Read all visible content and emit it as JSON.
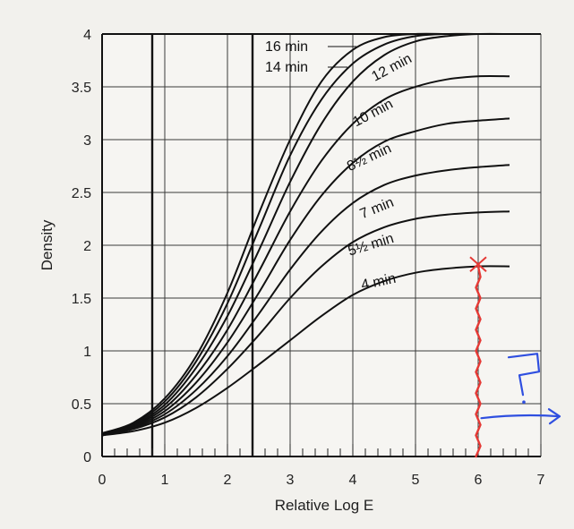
{
  "chart_data": {
    "type": "line",
    "title": "",
    "xlabel": "Relative Log E",
    "ylabel": "Density",
    "xlim": [
      0,
      7
    ],
    "ylim": [
      0,
      4
    ],
    "grid": true,
    "x_ticks": [
      "0",
      "1",
      "2",
      "3",
      "4",
      "5",
      "6",
      "7"
    ],
    "y_ticks": [
      "0",
      "0.5",
      "1",
      "1.5",
      "2",
      "2.5",
      "3",
      "3.5",
      "4"
    ],
    "emphasized_verticals": [
      0.8,
      2.4
    ],
    "series": [
      {
        "name": "16 min",
        "x": [
          0,
          0.5,
          1,
          1.5,
          2,
          2.5,
          3,
          3.5,
          4,
          4.5,
          5,
          5.5,
          6,
          6.5
        ],
        "y": [
          0.22,
          0.32,
          0.55,
          0.95,
          1.55,
          2.3,
          3.0,
          3.55,
          3.85,
          3.97,
          4.0,
          4.0,
          4.0,
          4.0
        ]
      },
      {
        "name": "14 min",
        "x": [
          0,
          0.5,
          1,
          1.5,
          2,
          2.5,
          3,
          3.5,
          4,
          4.5,
          5,
          5.5,
          6,
          6.5
        ],
        "y": [
          0.22,
          0.31,
          0.52,
          0.9,
          1.45,
          2.15,
          2.85,
          3.38,
          3.72,
          3.9,
          3.98,
          4.0,
          4.0,
          4.0
        ]
      },
      {
        "name": "12 min",
        "x": [
          0,
          0.5,
          1,
          1.5,
          2,
          2.5,
          3,
          3.5,
          4,
          4.5,
          5,
          5.5,
          6,
          6.5
        ],
        "y": [
          0.21,
          0.3,
          0.49,
          0.84,
          1.33,
          1.95,
          2.6,
          3.15,
          3.55,
          3.8,
          3.93,
          3.98,
          4.0,
          4.0
        ]
      },
      {
        "name": "10 min",
        "x": [
          0,
          0.5,
          1,
          1.5,
          2,
          2.5,
          3,
          3.5,
          4,
          4.5,
          5,
          5.5,
          6,
          6.5
        ],
        "y": [
          0.21,
          0.29,
          0.46,
          0.77,
          1.2,
          1.75,
          2.32,
          2.8,
          3.15,
          3.38,
          3.5,
          3.57,
          3.6,
          3.6
        ]
      },
      {
        "name": "8½ min",
        "x": [
          0,
          0.5,
          1,
          1.5,
          2,
          2.5,
          3,
          3.5,
          4,
          4.5,
          5,
          5.5,
          6,
          6.5
        ],
        "y": [
          0.2,
          0.28,
          0.43,
          0.7,
          1.08,
          1.55,
          2.05,
          2.47,
          2.78,
          2.98,
          3.08,
          3.15,
          3.18,
          3.2
        ]
      },
      {
        "name": "7 min",
        "x": [
          0,
          0.5,
          1,
          1.5,
          2,
          2.5,
          3,
          3.5,
          4,
          4.5,
          5,
          5.5,
          6,
          6.5
        ],
        "y": [
          0.2,
          0.27,
          0.4,
          0.63,
          0.95,
          1.35,
          1.77,
          2.13,
          2.4,
          2.57,
          2.66,
          2.71,
          2.74,
          2.76
        ]
      },
      {
        "name": "5½ min",
        "x": [
          0,
          0.5,
          1,
          1.5,
          2,
          2.5,
          3,
          3.5,
          4,
          4.5,
          5,
          5.5,
          6,
          6.5
        ],
        "y": [
          0.2,
          0.26,
          0.37,
          0.56,
          0.83,
          1.15,
          1.5,
          1.8,
          2.03,
          2.17,
          2.25,
          2.29,
          2.31,
          2.32
        ]
      },
      {
        "name": "4 min",
        "x": [
          0,
          0.5,
          1,
          1.5,
          2,
          2.5,
          3,
          3.5,
          4,
          4.5,
          5,
          5.5,
          6,
          6.5
        ],
        "y": [
          0.2,
          0.24,
          0.32,
          0.46,
          0.65,
          0.87,
          1.1,
          1.33,
          1.53,
          1.66,
          1.74,
          1.78,
          1.8,
          1.8
        ]
      }
    ],
    "annotations": [
      {
        "type": "x-mark",
        "x": 6.0,
        "y": 1.82,
        "color": "#e53935"
      },
      {
        "type": "vertical-stroke",
        "x": 6.0,
        "y_from": 1.8,
        "y_to": 0,
        "color": "#e53935"
      },
      {
        "type": "question-mark",
        "text": "?",
        "x": 6.8,
        "y": 0.6,
        "color": "#2f4fe0"
      },
      {
        "type": "arrow",
        "direction": "right",
        "x_from": 6.05,
        "x_to": 7.3,
        "y": 0.38,
        "color": "#2f4fe0"
      }
    ]
  }
}
